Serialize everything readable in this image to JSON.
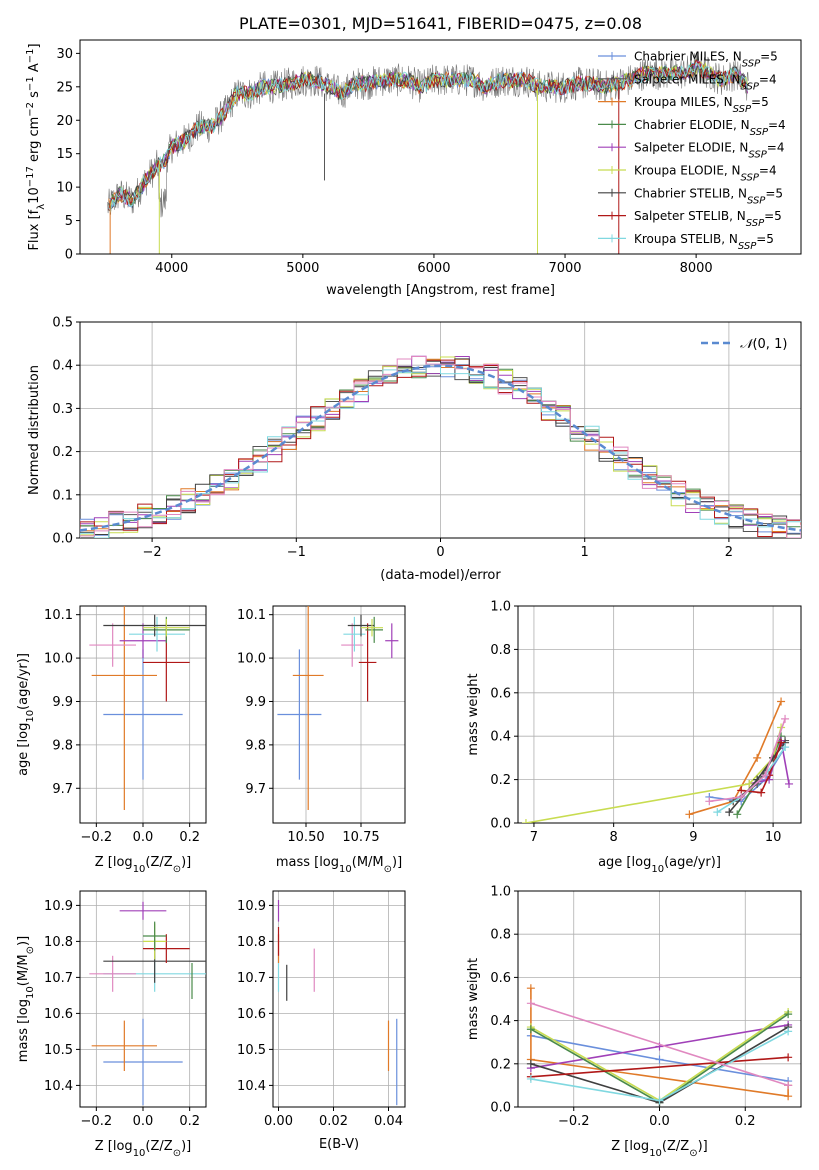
{
  "colors": {
    "Chabrier MILES": "#6a8fdc",
    "Salpeter MILES": "#555555",
    "Kroupa MILES": "#e07a28",
    "Chabrier ELODIE": "#4a8a4a",
    "Salpeter ELODIE": "#a040b8",
    "Kroupa ELODIE": "#c8dc50",
    "Chabrier STELIB": "#404040",
    "Salpeter STELIB": "#b01818",
    "Kroupa STELIB": "#80d8e0",
    "pink": "#e088c0",
    "normal": "#5a8ad0"
  },
  "chart_data": [
    {
      "id": "spectrum",
      "type": "line",
      "title": "PLATE=0301, MJD=51641, FIBERID=0475, z=0.08",
      "xlabel": "wavelength [Angstrom, rest frame]",
      "ylabel": "Flux [f",
      "ylabel_parts": [
        "Flux [f",
        "λ",
        "10",
        "−17",
        " erg cm",
        "−2",
        " s",
        "−1",
        " A",
        "−1",
        "]"
      ],
      "xlim": [
        3300,
        8800
      ],
      "ylim": [
        0,
        32
      ],
      "xticks": [
        4000,
        5000,
        6000,
        7000,
        8000
      ],
      "yticks": [
        0,
        5,
        10,
        15,
        20,
        25,
        30
      ],
      "anchors": [
        [
          3510,
          7
        ],
        [
          3600,
          9
        ],
        [
          3700,
          8
        ],
        [
          3800,
          11
        ],
        [
          3880,
          13
        ],
        [
          3950,
          14
        ],
        [
          4000,
          16
        ],
        [
          4100,
          17
        ],
        [
          4200,
          19
        ],
        [
          4300,
          19
        ],
        [
          4400,
          21
        ],
        [
          4500,
          24
        ],
        [
          4600,
          24
        ],
        [
          4700,
          25
        ],
        [
          4800,
          25
        ],
        [
          4900,
          25.5
        ],
        [
          5000,
          26
        ],
        [
          5100,
          26
        ],
        [
          5200,
          25
        ],
        [
          5300,
          24
        ],
        [
          5400,
          25.5
        ],
        [
          5500,
          25.5
        ],
        [
          5600,
          26
        ],
        [
          5700,
          26
        ],
        [
          5800,
          26
        ],
        [
          5900,
          25
        ],
        [
          6000,
          26
        ],
        [
          6100,
          26
        ],
        [
          6200,
          26
        ],
        [
          6300,
          26
        ],
        [
          6400,
          25
        ],
        [
          6500,
          26
        ],
        [
          6600,
          26
        ],
        [
          6700,
          26
        ],
        [
          6800,
          25
        ],
        [
          6900,
          25
        ],
        [
          7000,
          25
        ],
        [
          7100,
          25.5
        ],
        [
          7200,
          25.5
        ],
        [
          7300,
          25
        ],
        [
          7400,
          25.5
        ],
        [
          7500,
          26
        ],
        [
          7600,
          27
        ],
        [
          7700,
          27
        ],
        [
          7800,
          27
        ],
        [
          7900,
          27
        ],
        [
          8000,
          28
        ],
        [
          8100,
          27
        ],
        [
          8200,
          26
        ],
        [
          8300,
          27
        ],
        [
          8400,
          25
        ]
      ],
      "legend_placement": "upper-right",
      "series": [
        {
          "name": "Chabrier MILES",
          "nssp": "5"
        },
        {
          "name": "Salpeter MILES",
          "nssp": "4"
        },
        {
          "name": "Kroupa MILES",
          "nssp": "5"
        },
        {
          "name": "Chabrier ELODIE",
          "nssp": "4"
        },
        {
          "name": "Salpeter ELODIE",
          "nssp": "4"
        },
        {
          "name": "Kroupa ELODIE",
          "nssp": "4"
        },
        {
          "name": "Chabrier STELIB",
          "nssp": "5"
        },
        {
          "name": "Salpeter STELIB",
          "nssp": "5"
        },
        {
          "name": "Kroupa STELIB",
          "nssp": "5"
        }
      ],
      "legend_sub": "SSP"
    },
    {
      "id": "residuals",
      "type": "histogram",
      "xlabel": "(data-model)/error",
      "ylabel": "Normed distribution",
      "xlim": [
        -2.5,
        2.5
      ],
      "ylim": [
        0,
        0.5
      ],
      "xticks": [
        -2,
        -1,
        0,
        1,
        2
      ],
      "xtick_labels": [
        "−2",
        "−1",
        "0",
        "1",
        "2"
      ],
      "yticks": [
        0.0,
        0.1,
        0.2,
        0.3,
        0.4,
        0.5
      ],
      "ytick_labels": [
        "0.0",
        "0.1",
        "0.2",
        "0.3",
        "0.4",
        "0.5"
      ],
      "grid": true,
      "bin_width": 0.1,
      "legend": "N(0,1)",
      "legend_placement": "upper-right",
      "legend_parts": [
        "𝒩",
        "(0, 1)"
      ]
    },
    {
      "id": "age-vs-Z",
      "type": "errorbar",
      "xlabel_parts": [
        "Z [log",
        "10",
        "(Z/Z",
        "⊙",
        ")]"
      ],
      "ylabel_parts": [
        "age  [log",
        "10",
        "(age/yr)]"
      ],
      "xlim": [
        -0.27,
        0.27
      ],
      "ylim": [
        9.62,
        10.12
      ],
      "xticks": [
        -0.2,
        0.0,
        0.2
      ],
      "xtick_labels": [
        "−0.2",
        "0.0",
        "0.2"
      ],
      "yticks": [
        9.7,
        9.8,
        9.9,
        10.0,
        10.1
      ],
      "ytick_labels": [
        "9.7",
        "9.8",
        "9.9",
        "10.0",
        "10.1"
      ],
      "points": [
        {
          "c": "Chabrier MILES",
          "x": 0.0,
          "xe": 0.17,
          "y": 9.87,
          "ye": 0.15
        },
        {
          "c": "Kroupa MILES",
          "x": -0.08,
          "xe": 0.14,
          "y": 9.96,
          "ye": 0.31
        },
        {
          "c": "Salpeter STELIB",
          "x": 0.1,
          "xe": 0.1,
          "y": 9.99,
          "ye": 0.09
        },
        {
          "c": "pink",
          "x": -0.13,
          "xe": 0.1,
          "y": 10.03,
          "ye": 0.05
        },
        {
          "c": "Salpeter ELODIE",
          "x": 0.0,
          "xe": 0.1,
          "y": 10.04,
          "ye": 0.04
        },
        {
          "c": "Kroupa STELIB",
          "x": 0.06,
          "xe": 0.12,
          "y": 10.055,
          "ye": 0.04
        },
        {
          "c": "Chabrier ELODIE",
          "x": 0.1,
          "xe": 0.1,
          "y": 10.065,
          "ye": 0.03
        },
        {
          "c": "Chabrier STELIB",
          "x": 0.05,
          "xe": 0.22,
          "y": 10.075,
          "ye": 0.025
        },
        {
          "c": "Kroupa ELODIE",
          "x": 0.1,
          "xe": 0.1,
          "y": 10.07,
          "ye": 0.02
        }
      ]
    },
    {
      "id": "age-vs-mass",
      "type": "errorbar",
      "xlabel_parts": [
        "mass [log",
        "10",
        "(M/M",
        "⊙",
        ")]"
      ],
      "xlim": [
        10.35,
        10.95
      ],
      "ylim": [
        9.62,
        10.12
      ],
      "xticks": [
        10.5,
        10.75
      ],
      "xtick_labels": [
        "10.50",
        "10.75"
      ],
      "yticks": [
        9.7,
        9.8,
        9.9,
        10.0,
        10.1
      ],
      "ytick_labels": [
        "9.7",
        "9.8",
        "9.9",
        "10.0",
        "10.1"
      ],
      "points": [
        {
          "c": "Chabrier MILES",
          "x": 10.47,
          "xe": 0.1,
          "y": 9.87,
          "ye": 0.15
        },
        {
          "c": "Kroupa MILES",
          "x": 10.51,
          "xe": 0.07,
          "y": 9.96,
          "ye": 0.31
        },
        {
          "c": "Salpeter STELIB",
          "x": 10.78,
          "xe": 0.04,
          "y": 9.99,
          "ye": 0.09
        },
        {
          "c": "pink",
          "x": 10.71,
          "xe": 0.05,
          "y": 10.03,
          "ye": 0.05
        },
        {
          "c": "Salpeter ELODIE",
          "x": 10.89,
          "xe": 0.03,
          "y": 10.04,
          "ye": 0.04
        },
        {
          "c": "Kroupa STELIB",
          "x": 10.72,
          "xe": 0.05,
          "y": 10.055,
          "ye": 0.04
        },
        {
          "c": "Chabrier ELODIE",
          "x": 10.81,
          "xe": 0.04,
          "y": 10.065,
          "ye": 0.03
        },
        {
          "c": "Chabrier STELIB",
          "x": 10.75,
          "xe": 0.06,
          "y": 10.075,
          "ye": 0.025
        },
        {
          "c": "Kroupa ELODIE",
          "x": 10.8,
          "xe": 0.05,
          "y": 10.07,
          "ye": 0.02
        }
      ]
    },
    {
      "id": "weight-vs-age",
      "type": "line",
      "xlabel_parts": [
        "age  [log",
        "10",
        "(age/yr)]"
      ],
      "ylabel": "mass weight",
      "xlim": [
        6.8,
        10.35
      ],
      "ylim": [
        0,
        1.0
      ],
      "xticks": [
        7,
        8,
        9,
        10
      ],
      "xtick_labels": [
        "7",
        "8",
        "9",
        "10"
      ],
      "yticks": [
        0.0,
        0.2,
        0.4,
        0.6,
        0.8,
        1.0
      ],
      "ytick_labels": [
        "0.0",
        "0.2",
        "0.4",
        "0.6",
        "0.8",
        "1.0"
      ],
      "grid": true,
      "series": [
        {
          "c": "Chabrier MILES",
          "x": [
            9.2,
            9.6,
            9.9,
            10.15
          ],
          "y": [
            0.12,
            0.1,
            0.2,
            0.35
          ]
        },
        {
          "c": "Kroupa MILES",
          "x": [
            8.95,
            9.5,
            9.8,
            10.1
          ],
          "y": [
            0.04,
            0.1,
            0.3,
            0.56
          ]
        },
        {
          "c": "Salpeter MILES",
          "x": [
            9.5,
            9.8,
            10.0,
            10.15
          ],
          "y": [
            0.1,
            0.18,
            0.3,
            0.38
          ]
        },
        {
          "c": "Chabrier ELODIE",
          "x": [
            9.55,
            9.8,
            10.0,
            10.1
          ],
          "y": [
            0.04,
            0.2,
            0.3,
            0.4
          ]
        },
        {
          "c": "Salpeter ELODIE",
          "x": [
            9.7,
            9.95,
            10.1,
            10.2
          ],
          "y": [
            0.18,
            0.2,
            0.38,
            0.18
          ]
        },
        {
          "c": "Kroupa ELODIE",
          "x": [
            6.9,
            9.7,
            10.0,
            10.1
          ],
          "y": [
            0.0,
            0.18,
            0.3,
            0.44
          ]
        },
        {
          "c": "Chabrier STELIB",
          "x": [
            9.45,
            9.8,
            10.0,
            10.15
          ],
          "y": [
            0.05,
            0.2,
            0.3,
            0.37
          ]
        },
        {
          "c": "Salpeter STELIB",
          "x": [
            9.6,
            9.85,
            9.95,
            10.1
          ],
          "y": [
            0.15,
            0.14,
            0.22,
            0.37
          ]
        },
        {
          "c": "Kroupa STELIB",
          "x": [
            9.3,
            9.6,
            9.9,
            10.15
          ],
          "y": [
            0.05,
            0.12,
            0.22,
            0.35
          ]
        },
        {
          "c": "pink",
          "x": [
            9.2,
            9.6,
            9.9,
            10.15
          ],
          "y": [
            0.1,
            0.12,
            0.22,
            0.48
          ]
        }
      ]
    },
    {
      "id": "mass-vs-Z",
      "type": "errorbar",
      "xlabel_parts": [
        "Z [log",
        "10",
        "(Z/Z",
        "⊙",
        ")]"
      ],
      "ylabel_parts": [
        "mass [log",
        "10",
        "(M/M",
        "⊙",
        ")]"
      ],
      "xlim": [
        -0.27,
        0.27
      ],
      "ylim": [
        10.34,
        10.94
      ],
      "xticks": [
        -0.2,
        0.0,
        0.2
      ],
      "xtick_labels": [
        "−0.2",
        "0.0",
        "0.2"
      ],
      "yticks": [
        10.4,
        10.5,
        10.6,
        10.7,
        10.8,
        10.9
      ],
      "ytick_labels": [
        "10.4",
        "10.5",
        "10.6",
        "10.7",
        "10.8",
        "10.9"
      ],
      "points": [
        {
          "c": "Chabrier MILES",
          "x": 0.0,
          "xe": 0.17,
          "y": 10.465,
          "ye": 0.12
        },
        {
          "c": "Kroupa MILES",
          "x": -0.08,
          "xe": 0.14,
          "y": 10.51,
          "ye": 0.07
        },
        {
          "c": "Kroupa STELIB",
          "x": 0.05,
          "xe": 0.22,
          "y": 10.71,
          "ye": 0.05
        },
        {
          "c": "pink",
          "x": -0.13,
          "xe": 0.1,
          "y": 10.71,
          "ye": 0.05
        },
        {
          "c": "Chabrier STELIB",
          "x": 0.05,
          "xe": 0.22,
          "y": 10.745,
          "ye": 0.06
        },
        {
          "c": "Salpeter STELIB",
          "x": 0.1,
          "xe": 0.1,
          "y": 10.78,
          "ye": 0.04
        },
        {
          "c": "Kroupa ELODIE",
          "x": 0.05,
          "xe": 0.05,
          "y": 10.8,
          "ye": 0.05
        },
        {
          "c": "Chabrier ELODIE",
          "x": 0.05,
          "xe": 0.05,
          "y": 10.815,
          "ye": 0.04
        },
        {
          "c": "Salpeter ELODIE",
          "x": 0.0,
          "xe": 0.1,
          "y": 10.885,
          "ye": 0.025
        },
        {
          "c": "Chabrier ELODIE",
          "x": 0.21,
          "xe": 0.0,
          "y": 10.69,
          "ye": 0.05
        }
      ]
    },
    {
      "id": "mass-vs-ebv",
      "type": "errorbar",
      "xlabel": "E(B-V)",
      "xlim": [
        -0.002,
        0.046
      ],
      "ylim": [
        10.34,
        10.94
      ],
      "xticks": [
        0.0,
        0.02,
        0.04
      ],
      "xtick_labels": [
        "0.00",
        "0.02",
        "0.04"
      ],
      "yticks": [
        10.4,
        10.5,
        10.6,
        10.7,
        10.8,
        10.9
      ],
      "ytick_labels": [
        "10.4",
        "10.5",
        "10.6",
        "10.7",
        "10.8",
        "10.9"
      ],
      "points": [
        {
          "c": "Chabrier MILES",
          "x": 0.043,
          "xe": 0.0,
          "y": 10.465,
          "ye": 0.12
        },
        {
          "c": "Kroupa MILES",
          "x": 0.04,
          "xe": 0.0,
          "y": 10.51,
          "ye": 0.07
        },
        {
          "c": "Chabrier STELIB",
          "x": 0.003,
          "xe": 0.0,
          "y": 10.685,
          "ye": 0.05
        },
        {
          "c": "pink",
          "x": 0.013,
          "xe": 0.0,
          "y": 10.72,
          "ye": 0.06
        },
        {
          "c": "Kroupa STELIB",
          "x": 0.0,
          "xe": 0.0,
          "y": 10.71,
          "ye": 0.05
        },
        {
          "c": "Kroupa MILES",
          "x": 0.0,
          "xe": 0.0,
          "y": 10.78,
          "ye": 0.04
        },
        {
          "c": "Salpeter ELODIE",
          "x": 0.0,
          "xe": 0.0,
          "y": 10.885,
          "ye": 0.03
        },
        {
          "c": "Salpeter STELIB",
          "x": 0.0,
          "xe": 0.0,
          "y": 10.8,
          "ye": 0.04
        }
      ]
    },
    {
      "id": "weight-vs-Z",
      "type": "line",
      "xlabel_parts": [
        "Z [log",
        "10",
        "(Z/Z",
        "⊙",
        ")]"
      ],
      "ylabel": "mass weight",
      "xlim": [
        -0.33,
        0.33
      ],
      "ylim": [
        0,
        1.0
      ],
      "xticks": [
        -0.2,
        0.0,
        0.2
      ],
      "xtick_labels": [
        "−0.2",
        "0.0",
        "0.2"
      ],
      "yticks": [
        0.0,
        0.2,
        0.4,
        0.6,
        0.8,
        1.0
      ],
      "ytick_labels": [
        "0.0",
        "0.2",
        "0.4",
        "0.6",
        "0.8",
        "1.0"
      ],
      "grid": true,
      "series": [
        {
          "c": "Chabrier MILES",
          "x": [
            -0.3,
            0.0,
            0.3
          ],
          "y": [
            0.33,
            0.22,
            0.12
          ]
        },
        {
          "c": "Kroupa MILES",
          "x": [
            -0.3,
            -0.3,
            0.3,
            0.3
          ],
          "y": [
            0.55,
            0.22,
            0.05,
            0.1
          ]
        },
        {
          "c": "Salpeter ELODIE",
          "x": [
            -0.3,
            0.0,
            0.3
          ],
          "y": [
            0.18,
            0.28,
            0.38
          ]
        },
        {
          "c": "Kroupa ELODIE",
          "x": [
            -0.3,
            0.0,
            0.3
          ],
          "y": [
            0.37,
            0.03,
            0.44
          ]
        },
        {
          "c": "Chabrier ELODIE",
          "x": [
            -0.3,
            0.0,
            0.3
          ],
          "y": [
            0.36,
            0.02,
            0.43
          ]
        },
        {
          "c": "Chabrier STELIB",
          "x": [
            -0.3,
            0.0,
            0.3
          ],
          "y": [
            0.2,
            0.02,
            0.37
          ]
        },
        {
          "c": "Salpeter STELIB",
          "x": [
            -0.3,
            0.3
          ],
          "y": [
            0.14,
            0.23
          ]
        },
        {
          "c": "Kroupa STELIB",
          "x": [
            -0.3,
            0.0,
            0.3
          ],
          "y": [
            0.13,
            0.03,
            0.35
          ]
        },
        {
          "c": "pink",
          "x": [
            -0.3,
            0.3
          ],
          "y": [
            0.48,
            0.1
          ]
        }
      ]
    }
  ]
}
